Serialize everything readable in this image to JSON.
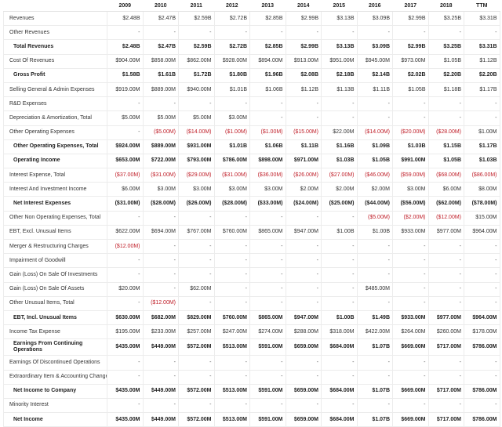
{
  "columns": [
    "",
    "2009",
    "2010",
    "2011",
    "2012",
    "2013",
    "2014",
    "2015",
    "2016",
    "2017",
    "2018",
    "TTM"
  ],
  "rows": [
    {
      "label": "Revenues",
      "bold": false,
      "values": [
        "$2.48B",
        "$2.47B",
        "$2.59B",
        "$2.72B",
        "$2.85B",
        "$2.99B",
        "$3.13B",
        "$3.09B",
        "$2.99B",
        "$3.25B",
        "$3.31B"
      ]
    },
    {
      "label": "Other Revenues",
      "bold": false,
      "values": [
        "-",
        "-",
        "-",
        "-",
        "-",
        "-",
        "-",
        "-",
        "-",
        "-",
        "-"
      ]
    },
    {
      "label": "Total Revenues",
      "bold": true,
      "values": [
        "$2.48B",
        "$2.47B",
        "$2.59B",
        "$2.72B",
        "$2.85B",
        "$2.99B",
        "$3.13B",
        "$3.09B",
        "$2.99B",
        "$3.25B",
        "$3.31B"
      ]
    },
    {
      "label": "Cost Of Revenues",
      "bold": false,
      "values": [
        "$904.00M",
        "$858.00M",
        "$862.00M",
        "$928.00M",
        "$894.00M",
        "$913.00M",
        "$951.00M",
        "$945.00M",
        "$973.00M",
        "$1.05B",
        "$1.12B"
      ]
    },
    {
      "label": "Gross Profit",
      "bold": true,
      "values": [
        "$1.58B",
        "$1.61B",
        "$1.72B",
        "$1.80B",
        "$1.96B",
        "$2.08B",
        "$2.18B",
        "$2.14B",
        "$2.02B",
        "$2.20B",
        "$2.20B"
      ]
    },
    {
      "label": "Selling General & Admin Expenses",
      "bold": false,
      "values": [
        "$919.00M",
        "$889.00M",
        "$940.00M",
        "$1.01B",
        "$1.06B",
        "$1.12B",
        "$1.13B",
        "$1.11B",
        "$1.05B",
        "$1.18B",
        "$1.17B"
      ]
    },
    {
      "label": "R&D Expenses",
      "bold": false,
      "values": [
        "-",
        "-",
        "-",
        "-",
        "-",
        "-",
        "-",
        "-",
        "-",
        "-",
        "-"
      ]
    },
    {
      "label": "Depreciation & Amortization, Total",
      "bold": false,
      "values": [
        "$5.00M",
        "$5.00M",
        "$5.00M",
        "$3.00M",
        "-",
        "-",
        "-",
        "-",
        "-",
        "-",
        "-"
      ]
    },
    {
      "label": "Other Operating Expenses",
      "bold": false,
      "values": [
        "-",
        "($5.00M)",
        "($14.00M)",
        "($1.00M)",
        "($1.00M)",
        "($15.00M)",
        "$22.00M",
        "($14.00M)",
        "($20.00M)",
        "($28.00M)",
        "$1.00M"
      ]
    },
    {
      "label": "Other Operating Expenses, Total",
      "bold": true,
      "values": [
        "$924.00M",
        "$889.00M",
        "$931.00M",
        "$1.01B",
        "$1.06B",
        "$1.11B",
        "$1.16B",
        "$1.09B",
        "$1.03B",
        "$1.15B",
        "$1.17B"
      ]
    },
    {
      "label": "Operating Income",
      "bold": true,
      "values": [
        "$653.00M",
        "$722.00M",
        "$793.00M",
        "$786.00M",
        "$898.00M",
        "$971.00M",
        "$1.03B",
        "$1.05B",
        "$991.00M",
        "$1.05B",
        "$1.03B"
      ]
    },
    {
      "label": "Interest Expense, Total",
      "bold": false,
      "values": [
        "($37.00M)",
        "($31.00M)",
        "($29.00M)",
        "($31.00M)",
        "($36.00M)",
        "($26.00M)",
        "($27.00M)",
        "($46.00M)",
        "($59.00M)",
        "($68.00M)",
        "($86.00M)"
      ]
    },
    {
      "label": "Interest And Investment Income",
      "bold": false,
      "values": [
        "$6.00M",
        "$3.00M",
        "$3.00M",
        "$3.00M",
        "$3.00M",
        "$2.00M",
        "$2.00M",
        "$2.00M",
        "$3.00M",
        "$6.00M",
        "$8.00M"
      ]
    },
    {
      "label": "Net Interest Expenses",
      "bold": true,
      "values": [
        "($31.00M)",
        "($28.00M)",
        "($26.00M)",
        "($28.00M)",
        "($33.00M)",
        "($24.00M)",
        "($25.00M)",
        "($44.00M)",
        "($56.00M)",
        "($62.00M)",
        "($78.00M)"
      ]
    },
    {
      "label": "Other Non Operating Expenses, Total",
      "bold": false,
      "values": [
        "-",
        "-",
        "-",
        "-",
        "-",
        "-",
        "-",
        "($5.00M)",
        "($2.00M)",
        "($12.00M)",
        "$15.00M"
      ]
    },
    {
      "label": "EBT, Excl. Unusual Items",
      "bold": false,
      "values": [
        "$622.00M",
        "$694.00M",
        "$767.00M",
        "$760.00M",
        "$865.00M",
        "$947.00M",
        "$1.00B",
        "$1.00B",
        "$933.00M",
        "$977.00M",
        "$964.00M"
      ]
    },
    {
      "label": "Merger & Restructuring Charges",
      "bold": false,
      "values": [
        "($12.00M)",
        "-",
        "-",
        "-",
        "-",
        "-",
        "-",
        "-",
        "-",
        "-",
        "-"
      ]
    },
    {
      "label": "Impairment of Goodwill",
      "bold": false,
      "values": [
        "-",
        "-",
        "-",
        "-",
        "-",
        "-",
        "-",
        "-",
        "-",
        "-",
        "-"
      ]
    },
    {
      "label": "Gain (Loss) On Sale Of Investments",
      "bold": false,
      "values": [
        "-",
        "-",
        "-",
        "-",
        "-",
        "-",
        "-",
        "-",
        "-",
        "-",
        "-"
      ]
    },
    {
      "label": "Gain (Loss) On Sale Of Assets",
      "bold": false,
      "values": [
        "$20.00M",
        "-",
        "$62.00M",
        "-",
        "-",
        "-",
        "-",
        "$485.00M",
        "-",
        "-",
        "-"
      ]
    },
    {
      "label": "Other Unusual Items, Total",
      "bold": false,
      "values": [
        "-",
        "($12.00M)",
        "-",
        "-",
        "-",
        "-",
        "-",
        "-",
        "-",
        "-",
        "-"
      ]
    },
    {
      "label": "EBT, Incl. Unusual Items",
      "bold": true,
      "values": [
        "$630.00M",
        "$682.00M",
        "$829.00M",
        "$760.00M",
        "$865.00M",
        "$947.00M",
        "$1.00B",
        "$1.49B",
        "$933.00M",
        "$977.00M",
        "$964.00M"
      ]
    },
    {
      "label": "Income Tax Expense",
      "bold": false,
      "values": [
        "$195.00M",
        "$233.00M",
        "$257.00M",
        "$247.00M",
        "$274.00M",
        "$288.00M",
        "$318.00M",
        "$422.00M",
        "$264.00M",
        "$260.00M",
        "$178.00M"
      ]
    },
    {
      "label": "Earnings From Continuing Operations",
      "bold": true,
      "tall": true,
      "values": [
        "$435.00M",
        "$449.00M",
        "$572.00M",
        "$513.00M",
        "$591.00M",
        "$659.00M",
        "$684.00M",
        "$1.07B",
        "$669.00M",
        "$717.00M",
        "$786.00M"
      ]
    },
    {
      "label": "Earnings Of Discontinued Operations",
      "bold": false,
      "values": [
        "-",
        "-",
        "-",
        "-",
        "-",
        "-",
        "-",
        "-",
        "-",
        "-",
        "-"
      ]
    },
    {
      "label": "Extraordinary Item & Accounting Change",
      "bold": false,
      "values": [
        "-",
        "-",
        "-",
        "-",
        "-",
        "-",
        "-",
        "-",
        "-",
        "-",
        "-"
      ]
    },
    {
      "label": "Net Income to Company",
      "bold": true,
      "values": [
        "$435.00M",
        "$449.00M",
        "$572.00M",
        "$513.00M",
        "$591.00M",
        "$659.00M",
        "$684.00M",
        "$1.07B",
        "$669.00M",
        "$717.00M",
        "$786.00M"
      ]
    },
    {
      "label": "Minority Interest",
      "bold": false,
      "values": [
        "-",
        "-",
        "-",
        "-",
        "-",
        "-",
        "-",
        "-",
        "-",
        "-",
        "-"
      ]
    },
    {
      "label": "Net Income",
      "bold": true,
      "values": [
        "$435.00M",
        "$449.00M",
        "$572.00M",
        "$513.00M",
        "$591.00M",
        "$659.00M",
        "$684.00M",
        "$1.07B",
        "$669.00M",
        "$717.00M",
        "$786.00M"
      ]
    }
  ],
  "colors": {
    "negative": "#c0202a",
    "text": "#333333",
    "grid": "#ececec"
  }
}
